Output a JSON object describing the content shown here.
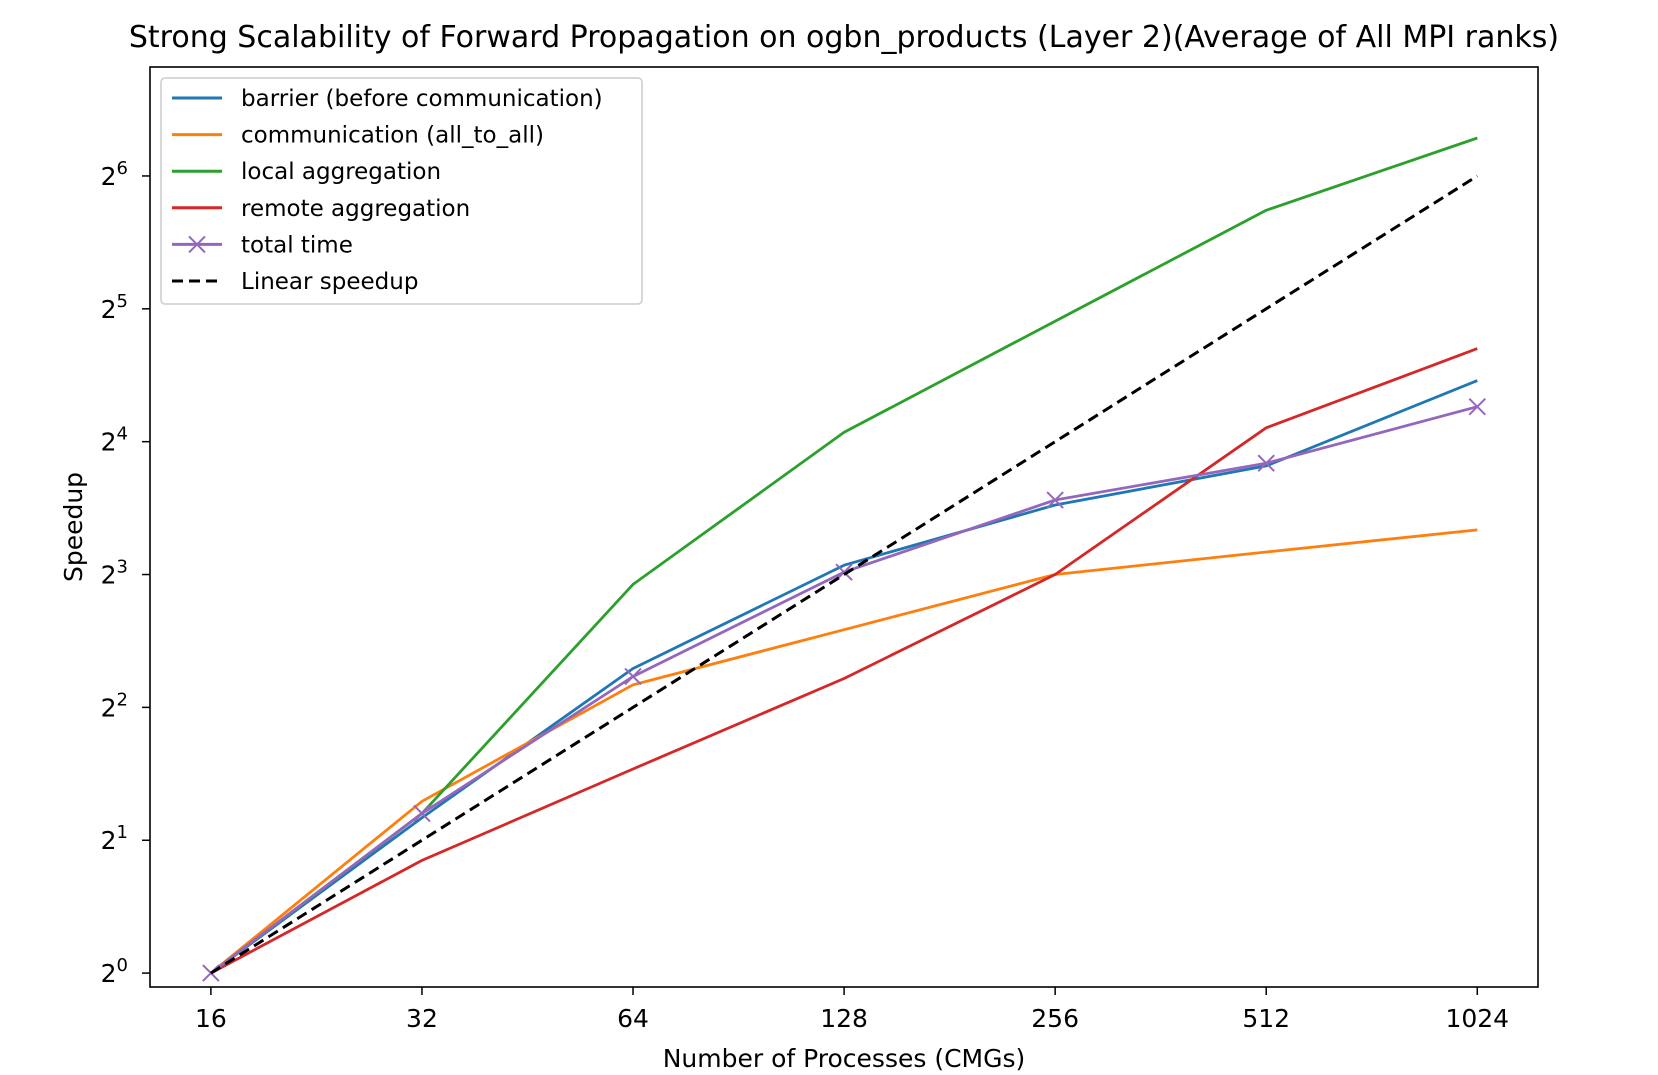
{
  "chart_data": {
    "type": "line",
    "title": "Strong Scalability of Forward Propagation on ogbn_products (Layer 2)(Average of All MPI ranks)",
    "xlabel": "Number of Processes (CMGs)",
    "ylabel": "Speedup",
    "x_scale": "log2",
    "y_scale": "log2",
    "x": [
      16,
      32,
      64,
      128,
      256,
      512,
      1024
    ],
    "x_tick_labels": [
      "16",
      "32",
      "64",
      "128",
      "256",
      "512",
      "1024"
    ],
    "y_ticks": [
      {
        "base": "2",
        "exp": "0",
        "value": 1
      },
      {
        "base": "2",
        "exp": "1",
        "value": 2
      },
      {
        "base": "2",
        "exp": "2",
        "value": 4
      },
      {
        "base": "2",
        "exp": "3",
        "value": 8
      },
      {
        "base": "2",
        "exp": "4",
        "value": 16
      },
      {
        "base": "2",
        "exp": "5",
        "value": 32
      },
      {
        "base": "2",
        "exp": "6",
        "value": 64
      }
    ],
    "xlim": [
      13.1,
      1250
    ],
    "ylim": [
      0.93,
      113
    ],
    "legend_position": "top-left",
    "grid": false,
    "series": [
      {
        "name": "barrier (before communication)",
        "color": "#1f77b4",
        "style": "solid",
        "marker": "none",
        "values": [
          1.0,
          2.25,
          4.9,
          8.4,
          11.5,
          14.1,
          22.0
        ]
      },
      {
        "name": "communication (all_to_all)",
        "color": "#ff7f0e",
        "style": "solid",
        "marker": "none",
        "values": [
          1.0,
          2.45,
          4.5,
          6.0,
          8.0,
          9.0,
          10.1
        ]
      },
      {
        "name": "local aggregation",
        "color": "#2ca02c",
        "style": "solid",
        "marker": "none",
        "values": [
          1.0,
          2.3,
          7.6,
          16.8,
          30.0,
          53.5,
          78.0
        ]
      },
      {
        "name": "remote aggregation",
        "color": "#d62728",
        "style": "solid",
        "marker": "none",
        "values": [
          1.0,
          1.8,
          2.9,
          4.65,
          8.0,
          17.2,
          26.0
        ]
      },
      {
        "name": "total time",
        "color": "#9467bd",
        "style": "solid",
        "marker": "x",
        "values": [
          1.0,
          2.3,
          4.7,
          8.1,
          11.8,
          14.3,
          19.2
        ]
      },
      {
        "name": "Linear speedup",
        "color": "#000000",
        "style": "dashed",
        "marker": "none",
        "values": [
          1,
          2,
          4,
          8,
          16,
          32,
          64
        ]
      }
    ]
  }
}
